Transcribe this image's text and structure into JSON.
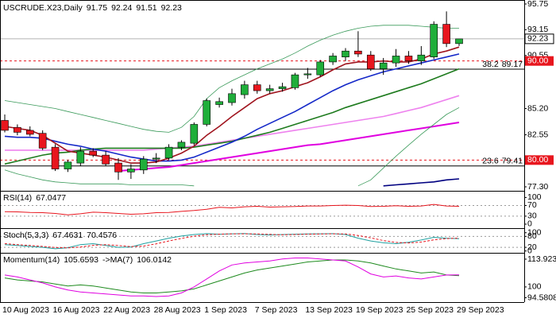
{
  "chart_data": [
    {
      "type": "candlestick",
      "title": "USCRUDE.X23,Daily",
      "x": [
        "10 Aug 2023",
        null,
        null,
        null,
        "16 Aug 2023",
        null,
        null,
        null,
        "22 Aug 2023",
        null,
        null,
        null,
        "28 Aug 2023",
        null,
        null,
        null,
        "1 Sep 2023",
        null,
        null,
        null,
        "7 Sep 2023",
        null,
        null,
        null,
        "13 Sep 2023",
        null,
        null,
        null,
        "19 Sep 2023",
        null,
        null,
        null,
        "25 Sep 2023",
        null,
        null,
        null,
        "29 Sep 2023"
      ],
      "open": [
        84.0,
        83.3,
        83.0,
        82.7,
        81.3,
        79.1,
        79.7,
        80.9,
        80.5,
        79.7,
        78.8,
        79.0,
        80.1,
        80.2,
        81.3,
        81.7,
        83.6,
        85.6,
        85.8,
        86.6,
        87.6,
        87.0,
        87.2,
        87.3,
        88.6,
        88.6,
        89.9,
        90.4,
        91.0,
        90.6,
        89.2,
        89.8,
        90.5,
        90.0,
        90.4,
        93.7,
        91.75
      ],
      "high": [
        84.6,
        83.6,
        83.4,
        83.0,
        81.6,
        80.0,
        81.3,
        81.2,
        80.9,
        80.2,
        79.6,
        80.4,
        80.7,
        81.6,
        82.0,
        83.8,
        86.2,
        86.3,
        87.2,
        88.0,
        88.0,
        87.6,
        87.8,
        88.8,
        89.3,
        90.1,
        90.8,
        91.3,
        93.0,
        91.0,
        90.3,
        91.2,
        91.0,
        91.5,
        94.0,
        95.0,
        92.24
      ],
      "low": [
        82.8,
        82.5,
        82.4,
        81.0,
        78.9,
        78.8,
        79.4,
        80.3,
        79.4,
        78.0,
        78.1,
        78.6,
        79.7,
        80.0,
        81.0,
        81.5,
        83.4,
        85.3,
        85.5,
        86.2,
        86.7,
        86.7,
        86.9,
        87.1,
        88.2,
        88.4,
        89.6,
        90.0,
        90.4,
        89.0,
        88.6,
        89.4,
        89.7,
        89.6,
        90.2,
        91.4,
        91.51
      ],
      "close": [
        83.0,
        82.8,
        82.6,
        81.2,
        79.1,
        79.8,
        80.9,
        80.5,
        79.6,
        78.8,
        79.1,
        80.1,
        80.2,
        81.3,
        81.8,
        83.6,
        86.0,
        85.9,
        86.7,
        87.6,
        87.0,
        87.2,
        87.4,
        88.6,
        88.7,
        89.9,
        90.5,
        91.0,
        90.7,
        89.2,
        89.8,
        90.5,
        90.0,
        90.6,
        93.7,
        91.75,
        92.23
      ],
      "up_color": "#1fae3a",
      "down_color": "#e8161e",
      "series": [
        {
          "color": "#ee82ee",
          "values": [
            81.0,
            81.0,
            81.0,
            81.0,
            81.0,
            81.0,
            81.0,
            81.0,
            81.0,
            81.0,
            81.0,
            81.0,
            81.1,
            81.2,
            81.3,
            81.4,
            81.6,
            81.8,
            82.0,
            82.2,
            82.4,
            82.6,
            82.8,
            83.0,
            83.2,
            83.4,
            83.6,
            83.8,
            84.0,
            84.2,
            84.4,
            84.7,
            85.0,
            85.3,
            85.7,
            86.1,
            86.5
          ]
        },
        {
          "color": "#e000e0",
          "values": [
            null,
            null,
            null,
            null,
            null,
            null,
            null,
            null,
            null,
            78.9,
            79.0,
            79.1,
            79.2,
            79.3,
            79.5,
            79.7,
            79.9,
            80.1,
            80.3,
            80.5,
            80.7,
            80.9,
            81.1,
            81.3,
            81.5,
            81.6,
            81.8,
            82.0,
            82.2,
            82.4,
            82.6,
            82.8,
            83.0,
            83.2,
            83.4,
            83.6,
            83.8
          ]
        },
        {
          "color": "#000080",
          "values": [
            null,
            null,
            null,
            null,
            null,
            null,
            null,
            null,
            null,
            null,
            null,
            null,
            null,
            null,
            null,
            null,
            null,
            null,
            null,
            null,
            null,
            null,
            null,
            null,
            null,
            null,
            null,
            null,
            null,
            null,
            77.4,
            77.5,
            77.6,
            77.7,
            77.8,
            78.0,
            78.1
          ]
        },
        {
          "color": "#3a9a5a",
          "values": [
            86.0,
            85.8,
            85.6,
            85.4,
            85.2,
            84.9,
            84.6,
            84.3,
            84.0,
            83.7,
            83.4,
            83.1,
            82.9,
            82.8,
            83.3,
            84.4,
            86.2,
            87.3,
            88.0,
            88.6,
            89.2,
            89.7,
            90.2,
            90.8,
            91.5,
            92.1,
            92.6,
            93.0,
            93.3,
            93.5,
            93.6,
            93.6,
            93.6,
            93.5,
            93.4,
            93.3,
            93.3
          ]
        },
        {
          "color": "#3a9a5a",
          "values": [
            79.0,
            78.6,
            78.3,
            78.0,
            77.8,
            77.7,
            77.6,
            77.6,
            77.6,
            77.6,
            77.5,
            77.5,
            77.5,
            77.5,
            77.5,
            77.4,
            null,
            null,
            null,
            null,
            null,
            null,
            null,
            null,
            null,
            null,
            null,
            null,
            77.4,
            78.0,
            79.2,
            80.4,
            81.5,
            82.6,
            83.6,
            84.6,
            85.3
          ]
        },
        {
          "color": "#1e7b1e",
          "values": [
            79.6,
            79.9,
            80.2,
            80.5,
            80.7,
            80.8,
            81.0,
            81.1,
            81.2,
            81.2,
            81.2,
            81.2,
            81.2,
            81.2,
            81.2,
            81.3,
            81.5,
            81.7,
            81.9,
            82.2,
            82.5,
            82.8,
            83.2,
            83.6,
            84.0,
            84.4,
            84.8,
            85.3,
            85.7,
            86.1,
            86.5,
            86.9,
            87.3,
            87.7,
            88.2,
            88.7,
            89.2
          ]
        },
        {
          "color": "#1428c8",
          "values": [
            82.4,
            82.3,
            82.3,
            82.2,
            81.9,
            81.6,
            81.4,
            81.1,
            80.9,
            80.6,
            80.3,
            80.1,
            79.9,
            79.9,
            80.0,
            80.3,
            80.8,
            81.3,
            81.8,
            82.4,
            83.1,
            83.7,
            84.3,
            84.9,
            85.6,
            86.3,
            87.0,
            87.6,
            88.1,
            88.5,
            88.9,
            89.2,
            89.5,
            89.8,
            90.1,
            90.4,
            90.7
          ]
        },
        {
          "color": "#a0141e",
          "values": [
            83.4,
            83.2,
            83.0,
            82.5,
            81.7,
            80.9,
            80.7,
            80.5,
            80.3,
            80.0,
            79.7,
            79.7,
            79.8,
            80.2,
            80.7,
            81.4,
            82.5,
            83.4,
            84.4,
            85.3,
            86.2,
            86.7,
            87.0,
            87.4,
            87.8,
            88.4,
            89.1,
            89.7,
            89.9,
            89.9,
            90.0,
            89.9,
            89.9,
            90.2,
            90.7,
            91.0,
            91.4
          ]
        }
      ],
      "levels": [
        {
          "value": 90,
          "label": "90.00",
          "color": "#e8161e"
        },
        {
          "value": 80,
          "label": "80.00",
          "color": "#e8161e"
        }
      ],
      "fib_levels": [
        {
          "value": 89.17,
          "label": "38.2"
        },
        {
          "value": 79.41,
          "label": "23.6"
        }
      ],
      "ylim": [
        76.9,
        96.15
      ],
      "yticks": [
        {
          "value": 95.75,
          "label": "95.75"
        },
        93.15,
        {
          "value": 90.55,
          "label": "90.55"
        },
        {
          "value": 85.2,
          "label": "85.20"
        },
        82.55,
        {
          "value": 77.3,
          "label": "77.30"
        }
      ]
    },
    {
      "type": "line",
      "title": "RSI(14)",
      "series": [
        {
          "color": "#e8161e",
          "values": [
            47,
            46,
            44,
            43,
            40,
            35,
            39,
            45,
            43,
            40,
            37,
            39,
            43,
            44,
            48,
            51,
            56,
            63,
            61,
            65,
            67,
            64,
            65,
            66,
            68,
            68,
            70,
            71,
            70,
            66,
            67,
            69,
            67,
            68,
            74,
            68,
            67.0477
          ]
        }
      ],
      "levels": [
        70,
        30
      ],
      "ylim": [
        -15,
        125
      ],
      "yticks": [
        100,
        70,
        30,
        0
      ]
    },
    {
      "type": "line",
      "title": "Stoch(5,3,3)",
      "series": [
        {
          "color": "#20a0a0",
          "values": [
            35,
            30,
            25,
            20,
            12,
            18,
            35,
            40,
            30,
            20,
            22,
            40,
            55,
            70,
            82,
            90,
            95,
            92,
            94,
            96,
            90,
            88,
            90,
            92,
            93,
            94,
            95,
            90,
            70,
            55,
            45,
            40,
            48,
            60,
            75,
            70,
            67.4631
          ]
        },
        {
          "color": "#e8161e",
          "dashed": true,
          "values": [
            40,
            35,
            30,
            25,
            19,
            17,
            22,
            31,
            35,
            30,
            24,
            27,
            39,
            55,
            69,
            81,
            89,
            92,
            94,
            94,
            93,
            91,
            89,
            90,
            92,
            93,
            94,
            93,
            85,
            72,
            57,
            47,
            44,
            49,
            61,
            68,
            70.4576
          ]
        }
      ],
      "levels": [
        80,
        20
      ],
      "ylim": [
        -10,
        125
      ],
      "yticks": [
        100,
        80,
        20,
        0
      ]
    },
    {
      "type": "line",
      "title": "Momentum(14)",
      "series": [
        {
          "color": "#1e8a1e",
          "values": [
            104.5,
            103.5,
            103,
            102.5,
            101.5,
            100.5,
            101,
            100.5,
            99.5,
            98.5,
            97.5,
            97,
            97,
            97.5,
            98,
            99,
            101,
            103,
            105,
            107,
            108.5,
            109.5,
            110.5,
            111.5,
            112.5,
            113,
            113.5,
            113.5,
            113,
            112,
            110.5,
            109,
            108,
            107,
            107.5,
            106,
            105.6593
          ]
        },
        {
          "name": "->MA(7)",
          "color": "#e000e0",
          "values": [
            106,
            105,
            103.5,
            102,
            100,
            98.5,
            97.5,
            97,
            96.5,
            96,
            95.5,
            95.5,
            95.2,
            95.5,
            97,
            100,
            104,
            108,
            111,
            112,
            112.5,
            113,
            114,
            114.5,
            114.5,
            114,
            113.5,
            113,
            110,
            106.5,
            105,
            105.5,
            104.5,
            104,
            105,
            106,
            106.0142
          ]
        }
      ],
      "ylim": [
        92.4,
        117.1
      ],
      "yticks": [
        113.9232,
        100,
        94.5808
      ]
    }
  ]
}
